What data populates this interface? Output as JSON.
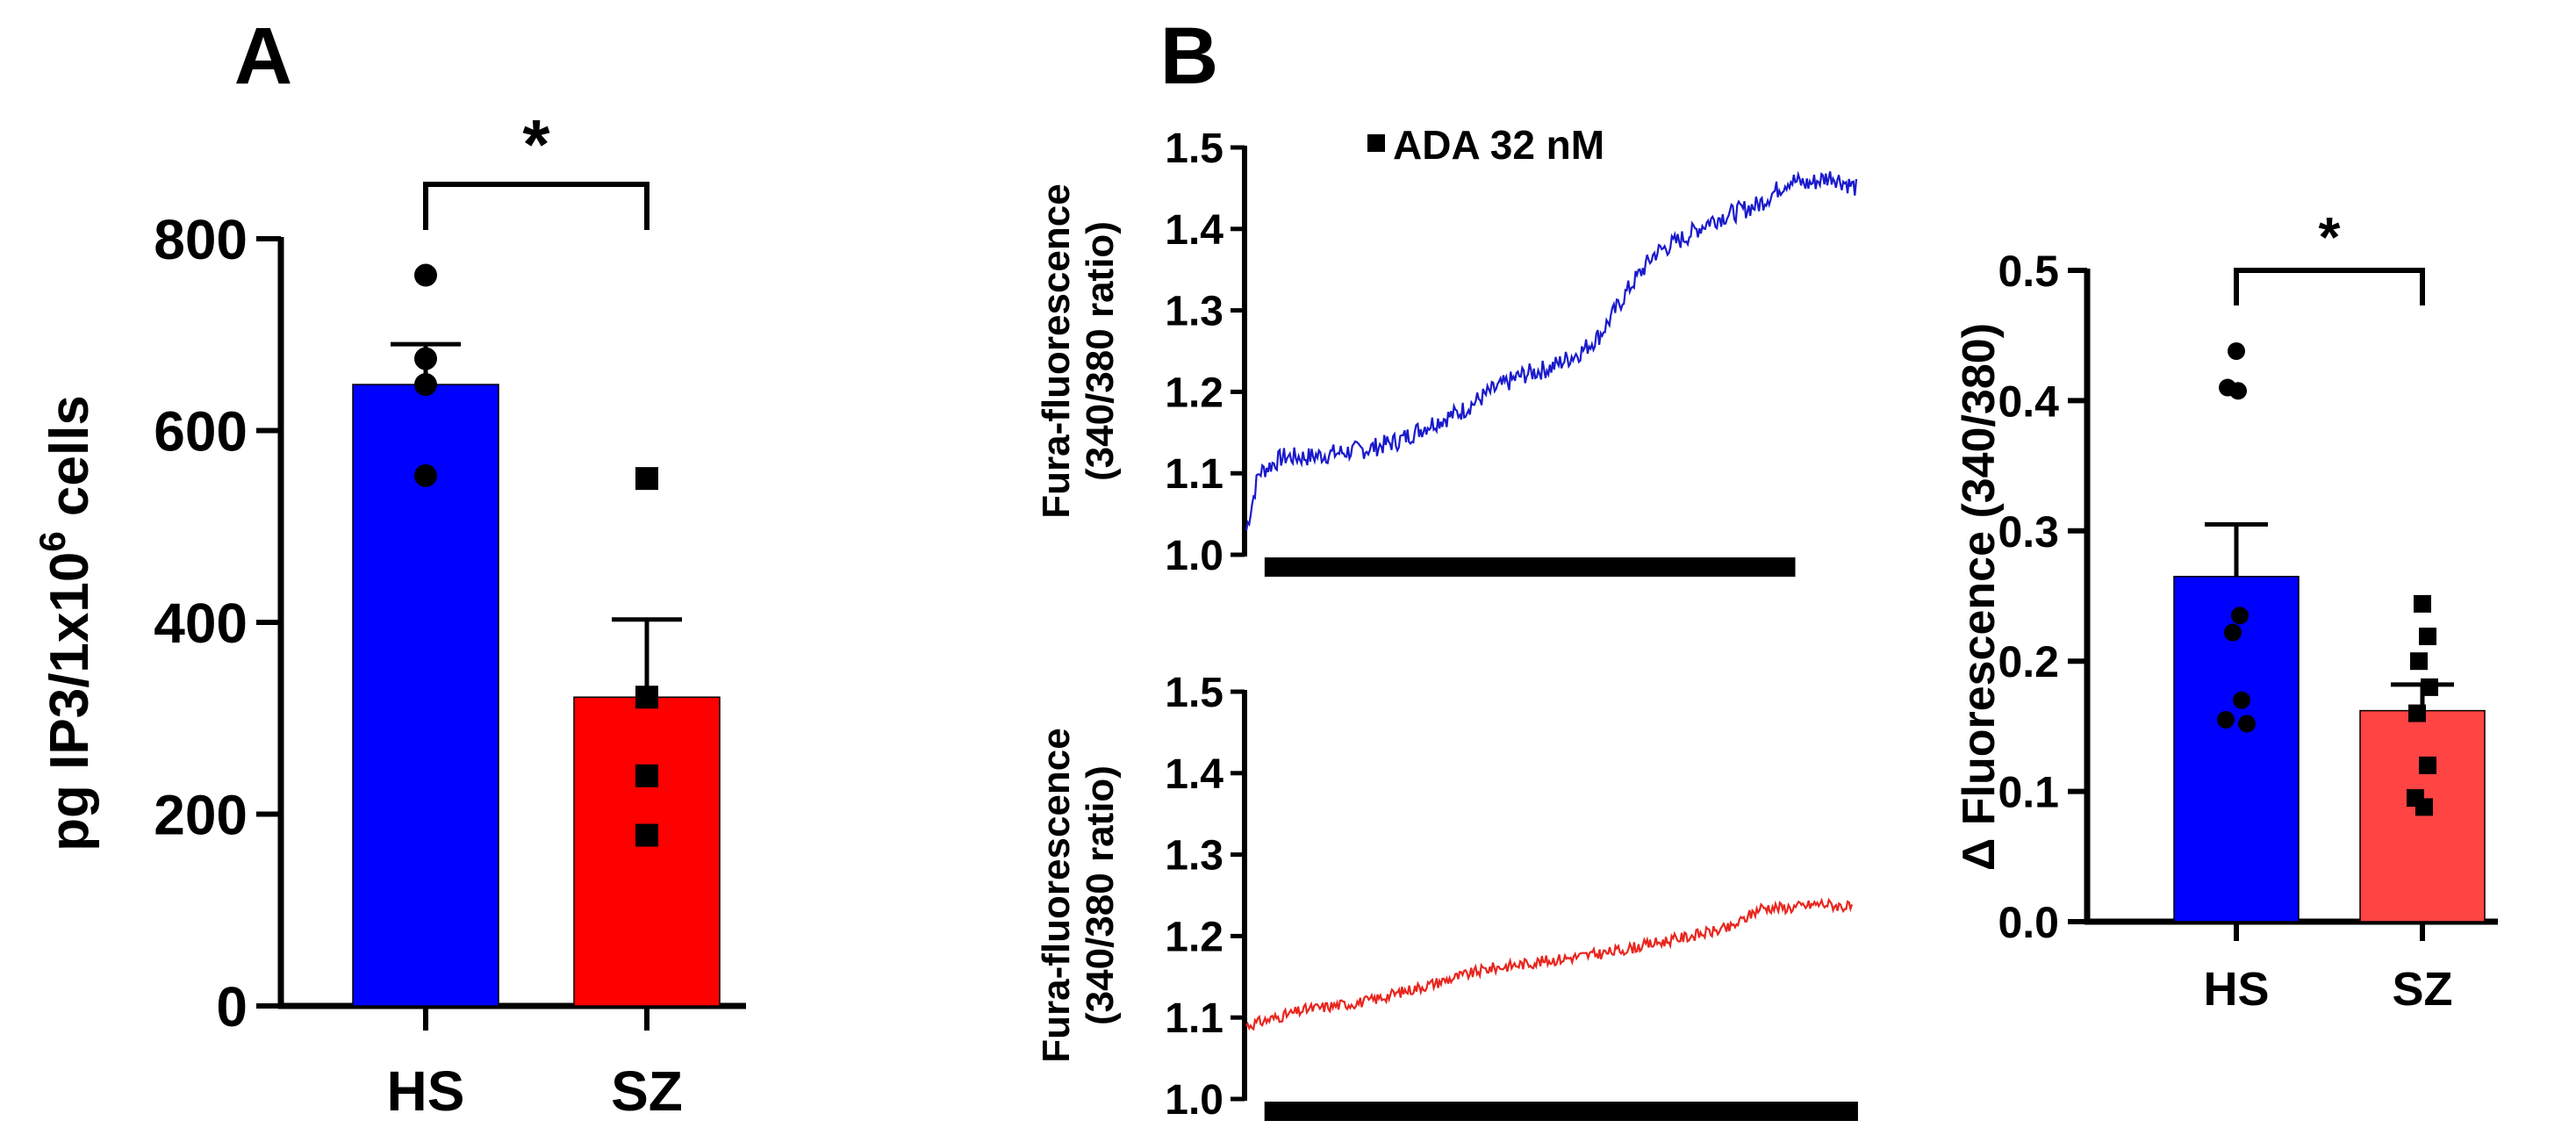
{
  "panels": {
    "a_label": "A",
    "b_label": "B"
  },
  "colors": {
    "hs": "#0000ff",
    "sz": "#ff0000",
    "sz_light": "#ff4444",
    "trace_hs": "#1a1acc",
    "trace_sz": "#e8261e",
    "ink": "#000000"
  },
  "chart_data": [
    {
      "id": "panel_a",
      "type": "bar",
      "categories": [
        "HS",
        "SZ"
      ],
      "values": [
        648,
        322
      ],
      "sem": [
        42,
        81
      ],
      "points": [
        [
          762,
          675,
          648,
          553
        ],
        [
          550,
          322,
          240,
          178
        ]
      ],
      "markers": [
        "circle",
        "square"
      ],
      "ylabel_main": "pg IP3/1x10",
      "ylabel_sup": "6",
      "ylabel_end": " cells",
      "ylim": [
        0,
        800
      ],
      "yticks": [
        0,
        200,
        400,
        600,
        800
      ],
      "significance": "*"
    },
    {
      "id": "panel_b_hs_trace",
      "type": "line",
      "series_name": "HS",
      "legend": "ADA 32 nM",
      "ylabel": [
        "Fura-fluorescence",
        "(340/380 ratio)"
      ],
      "ylim": [
        1.0,
        1.5
      ],
      "yticks": [
        "1.0",
        "1.1",
        "1.2",
        "1.3",
        "1.4",
        "1.5"
      ],
      "anchors_x": [
        0,
        2,
        6,
        10,
        15,
        20,
        25,
        30,
        35,
        40,
        45,
        50,
        55,
        58,
        63,
        67,
        72,
        76,
        80,
        84,
        89,
        92,
        96,
        100
      ],
      "anchors_y": [
        1.03,
        1.1,
        1.12,
        1.12,
        1.125,
        1.13,
        1.14,
        1.16,
        1.175,
        1.2,
        1.22,
        1.23,
        1.25,
        1.27,
        1.33,
        1.37,
        1.39,
        1.41,
        1.42,
        1.43,
        1.46,
        1.455,
        1.465,
        1.45
      ],
      "noise": 0.012,
      "stimulus_bar": [
        0.03,
        0.9
      ]
    },
    {
      "id": "panel_b_sz_trace",
      "type": "line",
      "series_name": "SZ",
      "ylabel": [
        "Fura-fluorescence",
        "(340/380 ratio)"
      ],
      "ylim": [
        1.0,
        1.5
      ],
      "yticks": [
        "1.0",
        "1.1",
        "1.2",
        "1.3",
        "1.4",
        "1.5"
      ],
      "anchors_x": [
        0,
        5,
        10,
        20,
        30,
        40,
        50,
        60,
        70,
        80,
        85,
        90,
        95,
        100
      ],
      "anchors_y": [
        1.09,
        1.1,
        1.11,
        1.12,
        1.14,
        1.16,
        1.17,
        1.18,
        1.195,
        1.21,
        1.235,
        1.235,
        1.24,
        1.235
      ],
      "noise": 0.007,
      "stimulus_bar": [
        0.03,
        1.01
      ]
    },
    {
      "id": "panel_b_bars",
      "type": "bar",
      "categories": [
        "HS",
        "SZ"
      ],
      "values": [
        0.265,
        0.162
      ],
      "sem": [
        0.04,
        0.02
      ],
      "points": [
        [
          0.438,
          0.41,
          0.4075,
          0.235,
          0.222,
          0.17,
          0.155,
          0.152
        ],
        [
          0.244,
          0.219,
          0.2,
          0.18,
          0.16,
          0.12,
          0.095,
          0.088
        ]
      ],
      "markers": [
        "circle",
        "square"
      ],
      "ylabel": "Δ Fluorescence (340/380)",
      "ylim": [
        0,
        0.5
      ],
      "yticks": [
        "0.0",
        "0.1",
        "0.2",
        "0.3",
        "0.4",
        "0.5"
      ],
      "significance": "*"
    }
  ]
}
